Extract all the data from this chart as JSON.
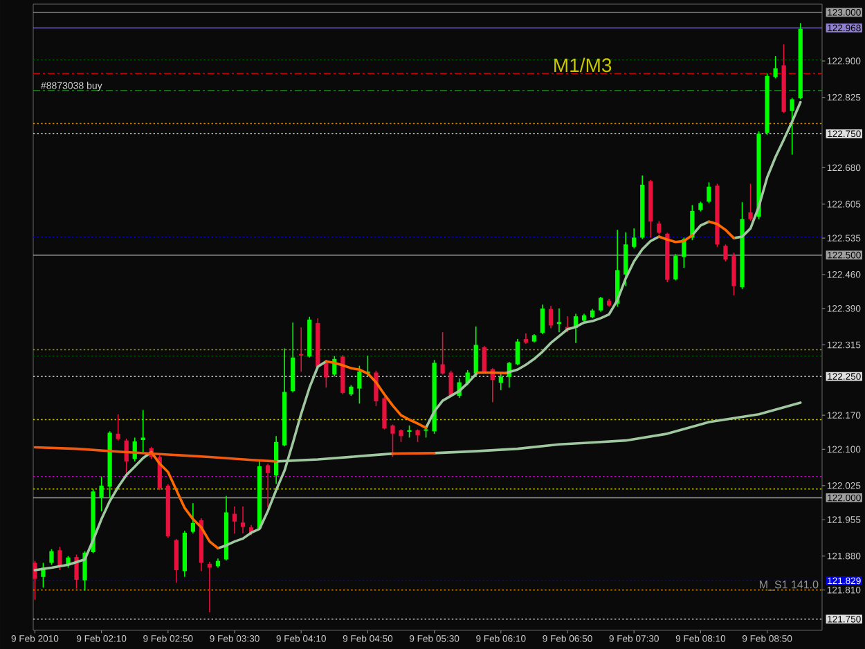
{
  "chart_data": {
    "type": "candlestick",
    "x": [
      "2010-02-09T01:30",
      "2010-02-09T01:35",
      "2010-02-09T01:40",
      "2010-02-09T01:45",
      "2010-02-09T01:50",
      "2010-02-09T01:55",
      "2010-02-09T02:00",
      "2010-02-09T02:05",
      "2010-02-09T02:10",
      "2010-02-09T02:15",
      "2010-02-09T02:20",
      "2010-02-09T02:25",
      "2010-02-09T02:30",
      "2010-02-09T02:35",
      "2010-02-09T02:40",
      "2010-02-09T02:45",
      "2010-02-09T02:50",
      "2010-02-09T02:55",
      "2010-02-09T03:00",
      "2010-02-09T03:05",
      "2010-02-09T03:10",
      "2010-02-09T03:15",
      "2010-02-09T03:20",
      "2010-02-09T03:25",
      "2010-02-09T03:30",
      "2010-02-09T03:35",
      "2010-02-09T03:40",
      "2010-02-09T03:45",
      "2010-02-09T03:50",
      "2010-02-09T03:55",
      "2010-02-09T04:00",
      "2010-02-09T04:05",
      "2010-02-09T04:10",
      "2010-02-09T04:15",
      "2010-02-09T04:20",
      "2010-02-09T04:25",
      "2010-02-09T04:30",
      "2010-02-09T04:35",
      "2010-02-09T04:40",
      "2010-02-09T04:45",
      "2010-02-09T04:50",
      "2010-02-09T04:55",
      "2010-02-09T05:00",
      "2010-02-09T05:05",
      "2010-02-09T05:10",
      "2010-02-09T05:15",
      "2010-02-09T05:20",
      "2010-02-09T05:25",
      "2010-02-09T05:30",
      "2010-02-09T05:35",
      "2010-02-09T05:40",
      "2010-02-09T05:45",
      "2010-02-09T05:50",
      "2010-02-09T05:55",
      "2010-02-09T06:00",
      "2010-02-09T06:05",
      "2010-02-09T06:10",
      "2010-02-09T06:15",
      "2010-02-09T06:20",
      "2010-02-09T06:25",
      "2010-02-09T06:30",
      "2010-02-09T06:35",
      "2010-02-09T06:40",
      "2010-02-09T06:45",
      "2010-02-09T06:50",
      "2010-02-09T06:55",
      "2010-02-09T07:00",
      "2010-02-09T07:05",
      "2010-02-09T07:10",
      "2010-02-09T07:15",
      "2010-02-09T07:20",
      "2010-02-09T07:25",
      "2010-02-09T07:30",
      "2010-02-09T07:35",
      "2010-02-09T07:40",
      "2010-02-09T07:45",
      "2010-02-09T07:50",
      "2010-02-09T07:55",
      "2010-02-09T08:00",
      "2010-02-09T08:05",
      "2010-02-09T08:10",
      "2010-02-09T08:15",
      "2010-02-09T08:20",
      "2010-02-09T08:25",
      "2010-02-09T08:30",
      "2010-02-09T08:35",
      "2010-02-09T08:40",
      "2010-02-09T08:45",
      "2010-02-09T08:50",
      "2010-02-09T08:55",
      "2010-02-09T09:00",
      "2010-02-09T09:05",
      "2010-02-09T09:10"
    ],
    "ohlc": [
      [
        121.866,
        121.87,
        121.79,
        121.833
      ],
      [
        121.837,
        121.866,
        121.815,
        121.856
      ],
      [
        121.866,
        121.894,
        121.862,
        121.89
      ],
      [
        121.892,
        121.899,
        121.851,
        121.859
      ],
      [
        121.861,
        121.88,
        121.856,
        121.877
      ],
      [
        121.878,
        121.883,
        121.813,
        121.831
      ],
      [
        121.83,
        121.89,
        121.809,
        121.887
      ],
      [
        121.888,
        122.018,
        121.886,
        122.013
      ],
      [
        122.001,
        122.044,
        121.972,
        122.025
      ],
      [
        122.023,
        122.137,
        121.999,
        122.134
      ],
      [
        122.132,
        122.172,
        122.118,
        122.121
      ],
      [
        122.118,
        122.122,
        122.046,
        122.075
      ],
      [
        122.08,
        122.124,
        122.075,
        122.116
      ],
      [
        122.119,
        122.181,
        122.094,
        122.124
      ],
      [
        122.102,
        122.105,
        122.08,
        122.084
      ],
      [
        122.084,
        122.089,
        122.016,
        122.02
      ],
      [
        122.025,
        122.028,
        121.918,
        121.921
      ],
      [
        121.913,
        121.915,
        121.825,
        121.851
      ],
      [
        121.849,
        121.932,
        121.837,
        121.928
      ],
      [
        121.93,
        121.989,
        121.927,
        121.948
      ],
      [
        121.954,
        121.958,
        121.849,
        121.866
      ],
      [
        121.864,
        121.868,
        121.764,
        121.856
      ],
      [
        121.859,
        121.875,
        121.856,
        121.87
      ],
      [
        121.873,
        122.004,
        121.871,
        121.97
      ],
      [
        121.967,
        121.982,
        121.926,
        121.951
      ],
      [
        121.949,
        121.982,
        121.927,
        121.94
      ],
      [
        121.939,
        121.944,
        121.923,
        121.928
      ],
      [
        121.937,
        122.075,
        121.934,
        122.065
      ],
      [
        122.067,
        122.07,
        121.98,
        122.051
      ],
      [
        122.046,
        122.127,
        122.029,
        122.115
      ],
      [
        122.108,
        122.308,
        122.106,
        122.218
      ],
      [
        122.22,
        122.361,
        122.217,
        122.289
      ],
      [
        122.296,
        122.351,
        122.26,
        122.293
      ],
      [
        122.291,
        122.373,
        122.289,
        122.367
      ],
      [
        122.36,
        122.37,
        122.265,
        122.27
      ],
      [
        122.278,
        122.284,
        122.227,
        122.248
      ],
      [
        122.254,
        122.292,
        122.25,
        122.286
      ],
      [
        122.291,
        122.294,
        122.213,
        122.216
      ],
      [
        122.213,
        122.232,
        122.21,
        122.229
      ],
      [
        122.225,
        122.272,
        122.194,
        122.26
      ],
      [
        122.256,
        122.293,
        122.25,
        122.26
      ],
      [
        122.258,
        122.262,
        122.189,
        122.199
      ],
      [
        122.205,
        122.208,
        122.141,
        122.143
      ],
      [
        122.149,
        122.151,
        122.084,
        122.132
      ],
      [
        122.139,
        122.141,
        122.115,
        122.127
      ],
      [
        122.136,
        122.149,
        122.124,
        122.139
      ],
      [
        122.139,
        122.141,
        122.115,
        122.129
      ],
      [
        122.138,
        122.149,
        122.124,
        122.141
      ],
      [
        122.137,
        122.284,
        122.132,
        122.278
      ],
      [
        122.275,
        122.341,
        122.254,
        122.256
      ],
      [
        122.258,
        122.262,
        122.208,
        122.21
      ],
      [
        122.21,
        122.246,
        122.206,
        122.238
      ],
      [
        122.236,
        122.263,
        122.232,
        122.258
      ],
      [
        122.256,
        122.353,
        122.251,
        122.315
      ],
      [
        122.31,
        122.313,
        122.257,
        122.26
      ],
      [
        122.265,
        122.267,
        122.197,
        122.243
      ],
      [
        122.237,
        122.256,
        122.222,
        122.249
      ],
      [
        122.249,
        122.28,
        122.227,
        122.278
      ],
      [
        122.275,
        122.327,
        122.273,
        122.322
      ],
      [
        122.327,
        122.339,
        122.317,
        122.32
      ],
      [
        122.322,
        122.337,
        122.32,
        122.335
      ],
      [
        122.34,
        122.398,
        122.337,
        122.39
      ],
      [
        122.389,
        122.395,
        122.349,
        122.355
      ],
      [
        122.358,
        122.39,
        122.341,
        122.362
      ],
      [
        122.352,
        122.374,
        122.341,
        122.347
      ],
      [
        122.35,
        122.379,
        122.319,
        122.374
      ],
      [
        122.365,
        122.379,
        122.36,
        122.376
      ],
      [
        122.372,
        122.389,
        122.37,
        122.386
      ],
      [
        122.386,
        122.414,
        122.383,
        122.412
      ],
      [
        122.406,
        122.41,
        122.394,
        122.396
      ],
      [
        122.4,
        122.552,
        122.394,
        122.469
      ],
      [
        122.46,
        122.547,
        122.436,
        122.522
      ],
      [
        122.517,
        122.555,
        122.514,
        122.536
      ],
      [
        122.536,
        122.664,
        122.533,
        122.645
      ],
      [
        122.652,
        122.655,
        122.536,
        122.569
      ],
      [
        122.565,
        122.57,
        122.543,
        122.546
      ],
      [
        122.544,
        122.546,
        122.444,
        122.449
      ],
      [
        122.45,
        122.502,
        122.448,
        122.498
      ],
      [
        122.496,
        122.536,
        122.474,
        122.533
      ],
      [
        122.536,
        122.603,
        122.531,
        122.591
      ],
      [
        122.593,
        122.61,
        122.59,
        122.607
      ],
      [
        122.61,
        122.65,
        122.607,
        122.641
      ],
      [
        122.643,
        122.647,
        122.517,
        122.522
      ],
      [
        122.519,
        122.522,
        122.487,
        122.491
      ],
      [
        122.498,
        122.505,
        122.417,
        122.436
      ],
      [
        122.434,
        122.609,
        122.43,
        122.574
      ],
      [
        122.588,
        122.647,
        122.571,
        122.574
      ],
      [
        122.579,
        122.755,
        122.574,
        122.75
      ],
      [
        122.752,
        122.874,
        122.748,
        122.869
      ],
      [
        122.867,
        122.91,
        122.864,
        122.885
      ],
      [
        122.891,
        122.934,
        122.793,
        122.795
      ],
      [
        122.797,
        122.824,
        122.707,
        122.821
      ],
      [
        122.823,
        122.978,
        122.821,
        122.966
      ]
    ],
    "colors": [
      "#e8103c",
      "#00ff00",
      "#00ff00",
      "#e8103c",
      "#00ff00",
      "#e8103c",
      "#00ff00",
      "#00ff00",
      "#00ff00",
      "#00ff00",
      "#e8103c",
      "#e8103c",
      "#00ff00",
      "#00ff00",
      "#e8103c",
      "#e8103c",
      "#e8103c",
      "#e8103c",
      "#00ff00",
      "#00ff00",
      "#e8103c",
      "#e8103c",
      "#00ff00",
      "#00ff00",
      "#e8103c",
      "#e8103c",
      "#e8103c",
      "#00ff00",
      "#e8103c",
      "#00ff00",
      "#00ff00",
      "#00ff00",
      "#e8103c",
      "#00ff00",
      "#e8103c",
      "#e8103c",
      "#00ff00",
      "#e8103c",
      "#00ff00",
      "#00ff00",
      "#00ff00",
      "#e8103c",
      "#e8103c",
      "#e8103c",
      "#e8103c",
      "#00ff00",
      "#e8103c",
      "#00ff00",
      "#00ff00",
      "#e8103c",
      "#e8103c",
      "#00ff00",
      "#00ff00",
      "#00ff00",
      "#e8103c",
      "#e8103c",
      "#00ff00",
      "#00ff00",
      "#00ff00",
      "#e8103c",
      "#00ff00",
      "#00ff00",
      "#e8103c",
      "#00ff00",
      "#e8103c",
      "#00ff00",
      "#00ff00",
      "#00ff00",
      "#00ff00",
      "#e8103c",
      "#00ff00",
      "#00ff00",
      "#00ff00",
      "#00ff00",
      "#e8103c",
      "#e8103c",
      "#e8103c",
      "#00ff00",
      "#00ff00",
      "#00ff00",
      "#00ff00",
      "#00ff00",
      "#e8103c",
      "#e8103c",
      "#e8103c",
      "#00ff00",
      "#e8103c",
      "#00ff00",
      "#00ff00",
      "#00ff00",
      "#e8103c",
      "#00ff00",
      "#00ff00"
    ],
    "series": [
      {
        "type": "line",
        "color": "#a0c8a0",
        "x": [
          "2010-02-09T01:30",
          "2010-02-09T01:40",
          "2010-02-09T01:50",
          "2010-02-09T02:00",
          "2010-02-09T02:05",
          "2010-02-09T02:10",
          "2010-02-09T02:15",
          "2010-02-09T02:20",
          "2010-02-09T02:25",
          "2010-02-09T02:30",
          "2010-02-09T02:35",
          "2010-02-09T02:40",
          "2010-02-09T02:45",
          "2010-02-09T03:20",
          "2010-02-09T03:25",
          "2010-02-09T03:30",
          "2010-02-09T03:35",
          "2010-02-09T03:40",
          "2010-02-09T03:45",
          "2010-02-09T03:50",
          "2010-02-09T03:55",
          "2010-02-09T04:00",
          "2010-02-09T04:05",
          "2010-02-09T04:10",
          "2010-02-09T04:15",
          "2010-02-09T04:20",
          "2010-02-09T04:25",
          "2010-02-09T04:30",
          "2010-02-09T05:25",
          "2010-02-09T05:30",
          "2010-02-09T05:35",
          "2010-02-09T05:40",
          "2010-02-09T05:45",
          "2010-02-09T05:50",
          "2010-02-09T05:54",
          "2010-02-09T05:56",
          "2010-02-09T06:05",
          "2010-02-09T06:13",
          "2010-02-09T06:16",
          "2010-02-09T06:20",
          "2010-02-09T06:25",
          "2010-02-09T06:30",
          "2010-02-09T06:35",
          "2010-02-09T06:40",
          "2010-02-09T06:45",
          "2010-02-09T06:50",
          "2010-02-09T06:55",
          "2010-02-09T07:00",
          "2010-02-09T07:05",
          "2010-02-09T07:10",
          "2010-02-09T07:15",
          "2010-02-09T07:20",
          "2010-02-09T07:25",
          "2010-02-09T07:30",
          "2010-02-09T07:35",
          "2010-02-09T07:40",
          "2010-02-09T07:45",
          "2010-02-09T07:50",
          "2010-02-09T08:05",
          "2010-02-09T08:10",
          "2010-02-09T08:15",
          "2010-02-09T08:20",
          "2010-02-09T08:30",
          "2010-02-09T08:35",
          "2010-02-09T08:40",
          "2010-02-09T08:45",
          "2010-02-09T08:50",
          "2010-02-09T08:55",
          "2010-02-09T09:00",
          "2010-02-09T09:05",
          "2010-02-09T09:10"
        ],
        "values": [
          121.851,
          121.856,
          121.862,
          121.873,
          121.913,
          121.956,
          121.993,
          122.022,
          122.047,
          122.064,
          122.082,
          122.094,
          null,
          121.896,
          121.902,
          121.91,
          121.916,
          121.928,
          121.936,
          121.973,
          122.016,
          122.056,
          122.113,
          122.173,
          122.227,
          122.27,
          122.281,
          null,
          122.144,
          122.178,
          122.2,
          122.21,
          122.22,
          122.236,
          122.251,
          122.258,
          null,
          122.257,
          122.26,
          122.264,
          122.274,
          122.286,
          122.301,
          122.319,
          122.333,
          122.347,
          122.352,
          122.361,
          122.364,
          122.37,
          122.378,
          122.407,
          122.452,
          122.487,
          122.512,
          122.529,
          122.538,
          null,
          122.541,
          122.561,
          122.569,
          null,
          122.535,
          122.538,
          122.555,
          122.6,
          122.66,
          122.702,
          122.738,
          122.775,
          122.815
        ]
      },
      {
        "type": "line",
        "color": "#ff6a00",
        "x": [
          "2010-02-09T02:40",
          "2010-02-09T02:45",
          "2010-02-09T02:50",
          "2010-02-09T02:55",
          "2010-02-09T03:00",
          "2010-02-09T03:05",
          "2010-02-09T03:10",
          "2010-02-09T03:15",
          "2010-02-09T03:20",
          "2010-02-09T03:25",
          "2010-02-09T04:25",
          "2010-02-09T04:30",
          "2010-02-09T04:35",
          "2010-02-09T04:40",
          "2010-02-09T04:45",
          "2010-02-09T04:50",
          "2010-02-09T04:55",
          "2010-02-09T05:00",
          "2010-02-09T05:05",
          "2010-02-09T05:10",
          "2010-02-09T05:15",
          "2010-02-09T05:20",
          "2010-02-09T05:25",
          "2010-02-09T05:30",
          "2010-02-09T05:56",
          "2010-02-09T06:05",
          "2010-02-09T06:13",
          "2010-02-09T06:15",
          "2010-02-09T07:45",
          "2010-02-09T07:50",
          "2010-02-09T07:55",
          "2010-02-09T08:00",
          "2010-02-09T08:05",
          "2010-02-09T08:10",
          "2010-02-09T08:15",
          "2010-02-09T08:20",
          "2010-02-09T08:25",
          "2010-02-09T08:30"
        ],
        "values": [
          122.094,
          122.07,
          122.053,
          122.016,
          121.979,
          121.956,
          121.939,
          121.91,
          121.896,
          null,
          122.281,
          122.278,
          122.273,
          122.267,
          122.264,
          122.256,
          122.238,
          122.213,
          122.19,
          122.17,
          122.161,
          122.153,
          122.144,
          null,
          122.258,
          122.258,
          122.257,
          null,
          122.538,
          122.532,
          122.527,
          122.529,
          122.541,
          null,
          122.569,
          122.564,
          122.552,
          122.535
        ]
      },
      {
        "type": "line",
        "color": "#a0c8a0",
        "x": [
          "2010-02-09T03:55",
          "2010-02-09T04:20",
          "2010-02-09T04:50",
          "2010-02-09T05:05",
          "2010-02-09T05:10",
          "2010-02-09T05:30",
          "2010-02-09T05:55",
          "2010-02-09T06:20",
          "2010-02-09T06:45",
          "2010-02-09T07:00",
          "2010-02-09T07:25",
          "2010-02-09T07:50",
          "2010-02-09T08:15",
          "2010-02-09T08:45",
          "2010-02-09T09:10"
        ],
        "values": [
          122.075,
          122.079,
          122.087,
          122.091,
          null,
          122.092,
          122.096,
          122.101,
          122.11,
          122.113,
          122.118,
          122.132,
          122.156,
          122.172,
          122.196
        ]
      },
      {
        "type": "line",
        "color": "#f05a10",
        "x": [
          "2010-02-09T01:30",
          "2010-02-09T01:55",
          "2010-02-09T02:20",
          "2010-02-09T02:50",
          "2010-02-09T03:15",
          "2010-02-09T03:40",
          "2010-02-09T03:55",
          "2010-02-09T04:00",
          "2010-02-09T05:05",
          "2010-02-09T05:30"
        ],
        "values": [
          122.104,
          122.101,
          122.095,
          122.089,
          122.084,
          122.078,
          122.075,
          null,
          122.091,
          122.092
        ]
      }
    ],
    "xlim": [
      "2010-02-09T01:29",
      "2010-02-09T09:23"
    ],
    "xticks": [
      {
        "value": "2010-02-09T01:30",
        "label": "9 Feb 2010"
      },
      {
        "value": "2010-02-09T02:10",
        "label": "9 Feb 02:10"
      },
      {
        "value": "2010-02-09T02:50",
        "label": "9 Feb 02:50"
      },
      {
        "value": "2010-02-09T03:30",
        "label": "9 Feb 03:30"
      },
      {
        "value": "2010-02-09T04:10",
        "label": "9 Feb 04:10"
      },
      {
        "value": "2010-02-09T04:50",
        "label": "9 Feb 04:50"
      },
      {
        "value": "2010-02-09T05:30",
        "label": "9 Feb 05:30"
      },
      {
        "value": "2010-02-09T06:10",
        "label": "9 Feb 06:10"
      },
      {
        "value": "2010-02-09T06:50",
        "label": "9 Feb 06:50"
      },
      {
        "value": "2010-02-09T07:30",
        "label": "9 Feb 07:30"
      },
      {
        "value": "2010-02-09T08:10",
        "label": "9 Feb 08:10"
      },
      {
        "value": "2010-02-09T08:50",
        "label": "9 Feb 08:50"
      }
    ],
    "ylim": [
      121.727,
      123.017
    ],
    "yticks": [
      {
        "value": 122.9,
        "label": "122.900"
      },
      {
        "value": 122.825,
        "label": "122.825"
      },
      {
        "value": 122.68,
        "label": "122.680"
      },
      {
        "value": 122.605,
        "label": "122.605"
      },
      {
        "value": 122.535,
        "label": "122.535"
      },
      {
        "value": 122.46,
        "label": "122.460"
      },
      {
        "value": 122.39,
        "label": "122.390"
      },
      {
        "value": 122.315,
        "label": "122.315"
      },
      {
        "value": 122.17,
        "label": "122.170"
      },
      {
        "value": 122.1,
        "label": "122.100"
      },
      {
        "value": 122.025,
        "label": "122.025"
      },
      {
        "value": 121.955,
        "label": "121.955"
      },
      {
        "value": 121.88,
        "label": "121.880"
      },
      {
        "value": 121.81,
        "label": "121.810"
      }
    ],
    "ref_lines": [
      {
        "axis": "y",
        "value": 123.0,
        "label": "123.000",
        "color": "#a0a0a0",
        "line_style": "solid"
      },
      {
        "axis": "y",
        "value": 122.968,
        "label": "122.968",
        "color": "#9080d0",
        "line_style": "solid"
      },
      {
        "axis": "y",
        "value": 122.902,
        "color": "#006400",
        "line_style": "dotted"
      },
      {
        "axis": "y",
        "value": 122.874,
        "color": "#c80000",
        "line_style": "dashed"
      },
      {
        "axis": "y",
        "value": 122.839,
        "color": "#1e9a1e",
        "line_style": "dashed"
      },
      {
        "axis": "y",
        "value": 122.771,
        "color": "#d08a00",
        "line_style": "dotted"
      },
      {
        "axis": "y",
        "value": 122.75,
        "label": "122.750",
        "color": "#e0e0e0",
        "line_style": "dotted"
      },
      {
        "axis": "y",
        "value": 122.537,
        "color": "#0000c8",
        "line_style": "dotted"
      },
      {
        "axis": "y",
        "value": 122.5,
        "label": "122.500",
        "color": "#a0a0a0",
        "line_style": "solid"
      },
      {
        "axis": "y",
        "value": 122.305,
        "color": "#a0a000",
        "line_style": "dotted"
      },
      {
        "axis": "y",
        "value": 122.292,
        "color": "#006400",
        "line_style": "dotted"
      },
      {
        "axis": "y",
        "value": 122.25,
        "label": "122.250",
        "color": "#e0e0e0",
        "line_style": "dotted"
      },
      {
        "axis": "y",
        "value": 122.161,
        "color": "#c8c800",
        "line_style": "dotted"
      },
      {
        "axis": "y",
        "value": 122.044,
        "color": "#d000d0",
        "line_style": "dotted"
      },
      {
        "axis": "y",
        "value": 122.018,
        "color": "#c8c800",
        "line_style": "dotted"
      },
      {
        "axis": "y",
        "value": 122.0,
        "label": "122.000",
        "color": "#a0a0a0",
        "line_style": "solid"
      },
      {
        "axis": "y",
        "value": 121.829,
        "label": "121.829",
        "color": "#0000e0",
        "line_style": "dotted"
      },
      {
        "axis": "y",
        "value": 121.81,
        "color": "#d08a00",
        "line_style": "dotted"
      },
      {
        "axis": "y",
        "value": 121.75,
        "label": "121.750",
        "color": "#e0e0e0",
        "line_style": "dotted"
      }
    ],
    "annotations": [
      {
        "text": "#8873038 buy",
        "x": "2010-02-09T01:52",
        "y": 122.839
      },
      {
        "text": "M1/M3",
        "x": "2010-02-09T06:59",
        "y": 122.874
      },
      {
        "text": "M_S1 141.0",
        "x": "2010-02-09T09:03",
        "y": 121.81
      }
    ]
  }
}
